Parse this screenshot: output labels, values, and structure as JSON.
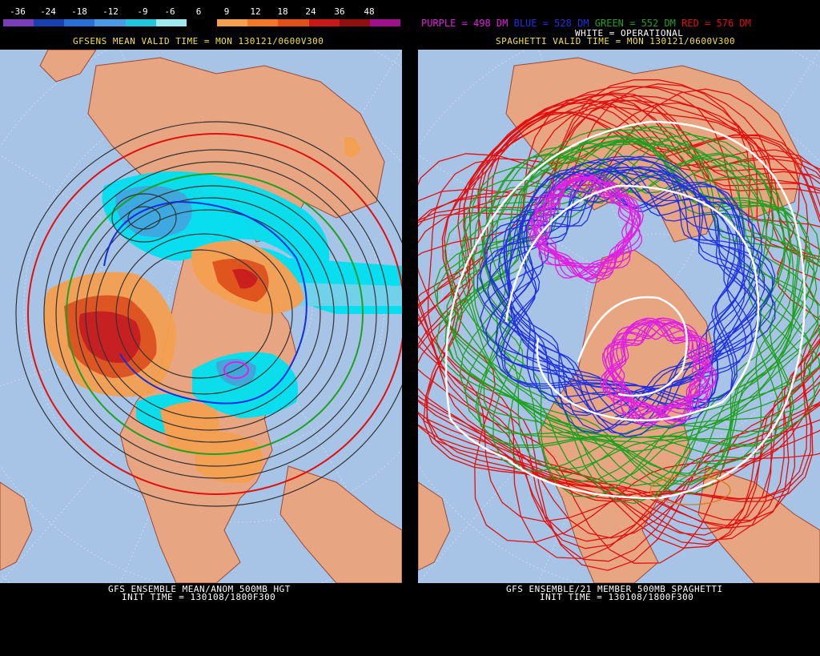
{
  "left": {
    "scale_labels": [
      "-36",
      "-24",
      "-18",
      "-12",
      "-9",
      "-6",
      "6",
      "9",
      "12",
      "18",
      "24",
      "36",
      "48"
    ],
    "scale_colors": [
      "#7a3fb8",
      "#1a3fb0",
      "#2a6fd6",
      "#4a9ae6",
      "#22c6dc",
      "#a0e8f0",
      "#000000",
      "#f5a050",
      "#f07828",
      "#e05018",
      "#c81818",
      "#901010",
      "#a0108a"
    ],
    "valid_time": "GFSENS MEAN VALID TIME = MON 130121/0600V300",
    "footer_line1": "GFS ENSEMBLE MEAN/ANOM 500MB HGT",
    "footer_line2": "INIT TIME = 130108/1800F300"
  },
  "right": {
    "legend": [
      {
        "text": "PURPLE = 498 DM",
        "color": "#e020e0"
      },
      {
        "text": "BLUE = 528 DM",
        "color": "#2030e0"
      },
      {
        "text": "GREEN = 552 DM",
        "color": "#20a020"
      },
      {
        "text": "RED = 576 DM",
        "color": "#e01010"
      }
    ],
    "operational": "WHITE = OPERATIONAL",
    "valid_time": "SPAGHETTI VALID TIME = MON 130121/0600V300",
    "footer_line1": "GFS ENSEMBLE/21 MEMBER 500MB SPAGHETTI",
    "footer_line2": "INIT TIME = 130108/1800F300"
  }
}
